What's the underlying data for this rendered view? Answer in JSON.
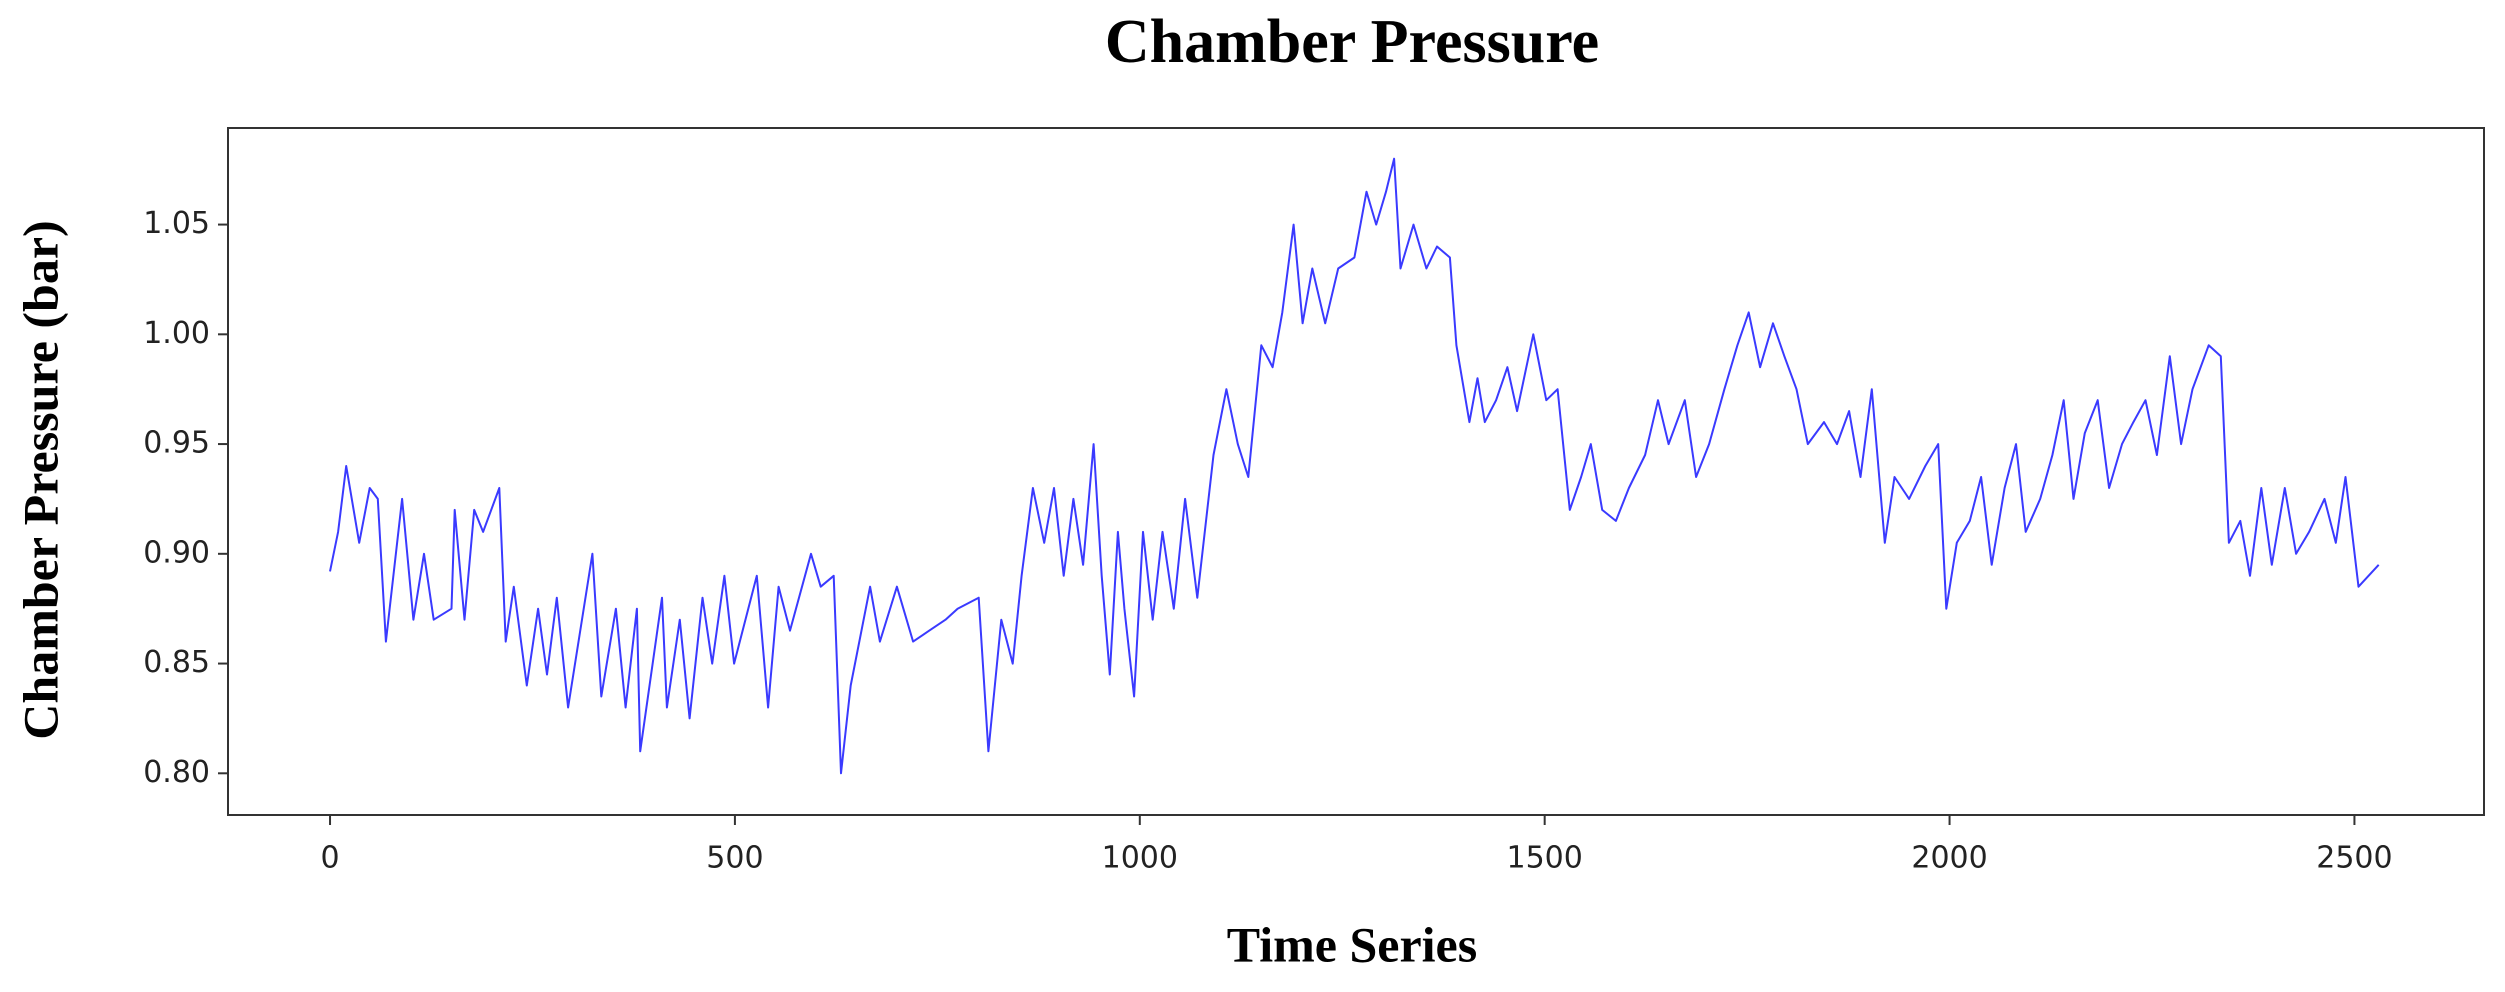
{
  "chart_data": {
    "type": "line",
    "title": "Chamber Pressure",
    "xlabel": "Time Series",
    "ylabel": "Chamber Pressure (bar)",
    "x": [
      0,
      10,
      20,
      36,
      49,
      59,
      69,
      89,
      103,
      116,
      128,
      150,
      154,
      166,
      178,
      189,
      209,
      217,
      227,
      243,
      257,
      268,
      280,
      294,
      324,
      335,
      353,
      365,
      379,
      383,
      410,
      416,
      432,
      444,
      460,
      472,
      487,
      499,
      527,
      541,
      554,
      568,
      594,
      606,
      622,
      631,
      643,
      667,
      679,
      700,
      720,
      740,
      760,
      775,
      801,
      813,
      829,
      843,
      854,
      868,
      882,
      894,
      906,
      918,
      930,
      943,
      953,
      963,
      973,
      981,
      993,
      1004,
      1016,
      1028,
      1042,
      1056,
      1071,
      1091,
      1107,
      1121,
      1134,
      1150,
      1164,
      1176,
      1190,
      1201,
      1213,
      1229,
      1245,
      1265,
      1280,
      1292,
      1304,
      1314,
      1322,
      1338,
      1354,
      1367,
      1383,
      1391,
      1407,
      1417,
      1426,
      1440,
      1454,
      1466,
      1486,
      1502,
      1516,
      1531,
      1545,
      1557,
      1571,
      1588,
      1604,
      1624,
      1640,
      1653,
      1673,
      1687,
      1703,
      1722,
      1738,
      1752,
      1766,
      1782,
      1796,
      1811,
      1825,
      1845,
      1861,
      1876,
      1890,
      1904,
      1920,
      1932,
      1950,
      1970,
      1986,
      1996,
      2009,
      2025,
      2039,
      2052,
      2068,
      2082,
      2094,
      2112,
      2127,
      2141,
      2153,
      2167,
      2183,
      2197,
      2213,
      2227,
      2242,
      2256,
      2272,
      2286,
      2300,
      2320,
      2335,
      2345,
      2359,
      2371,
      2385,
      2398,
      2414,
      2428,
      2444,
      2463,
      2477,
      2489,
      2505,
      2530
    ],
    "series": [
      {
        "name": "Chamber Pressure",
        "color": "#3a3aff",
        "values": [
          0.892,
          0.91,
          0.94,
          0.905,
          0.93,
          0.925,
          0.86,
          0.925,
          0.87,
          0.9,
          0.87,
          0.875,
          0.92,
          0.87,
          0.92,
          0.91,
          0.93,
          0.86,
          0.885,
          0.84,
          0.875,
          0.845,
          0.88,
          0.83,
          0.9,
          0.835,
          0.875,
          0.83,
          0.875,
          0.81,
          0.88,
          0.83,
          0.87,
          0.825,
          0.88,
          0.85,
          0.89,
          0.85,
          0.89,
          0.83,
          0.885,
          0.865,
          0.9,
          0.885,
          0.89,
          0.8,
          0.84,
          0.885,
          0.86,
          0.885,
          0.86,
          0.865,
          0.87,
          0.875,
          0.88,
          0.81,
          0.87,
          0.85,
          0.89,
          0.93,
          0.905,
          0.93,
          0.89,
          0.925,
          0.895,
          0.95,
          0.89,
          0.845,
          0.91,
          0.875,
          0.835,
          0.91,
          0.87,
          0.91,
          0.875,
          0.925,
          0.88,
          0.945,
          0.975,
          0.95,
          0.935,
          0.995,
          0.985,
          1.01,
          1.05,
          1.005,
          1.03,
          1.005,
          1.03,
          1.035,
          1.065,
          1.05,
          1.065,
          1.08,
          1.03,
          1.05,
          1.03,
          1.04,
          1.035,
          0.995,
          0.96,
          0.98,
          0.96,
          0.97,
          0.985,
          0.965,
          1.0,
          0.97,
          0.975,
          0.92,
          0.935,
          0.95,
          0.92,
          0.915,
          0.93,
          0.945,
          0.97,
          0.95,
          0.97,
          0.935,
          0.95,
          0.975,
          0.995,
          1.01,
          0.985,
          1.005,
          0.99,
          0.975,
          0.95,
          0.96,
          0.95,
          0.965,
          0.935,
          0.975,
          0.905,
          0.935,
          0.925,
          0.94,
          0.95,
          0.875,
          0.905,
          0.915,
          0.935,
          0.895,
          0.93,
          0.95,
          0.91,
          0.925,
          0.945,
          0.97,
          0.925,
          0.955,
          0.97,
          0.93,
          0.95,
          0.96,
          0.97,
          0.945,
          0.99,
          0.95,
          0.975,
          0.995,
          0.99,
          0.905,
          0.915,
          0.89,
          0.93,
          0.895,
          0.93,
          0.9,
          0.91,
          0.925,
          0.905,
          0.935,
          0.885,
          0.895
        ]
      }
    ],
    "xlim": [
      -126,
      2660
    ],
    "ylim": [
      0.781,
      1.094
    ],
    "xticks": [
      0,
      500,
      1000,
      1500,
      2000,
      2500
    ],
    "yticks": [
      {
        "value": 0.8,
        "label": "0.80"
      },
      0.85,
      {
        "value": 0.9,
        "label": "0.90"
      },
      0.95,
      {
        "value": 1,
        "label": "1.00"
      },
      1.05
    ]
  }
}
